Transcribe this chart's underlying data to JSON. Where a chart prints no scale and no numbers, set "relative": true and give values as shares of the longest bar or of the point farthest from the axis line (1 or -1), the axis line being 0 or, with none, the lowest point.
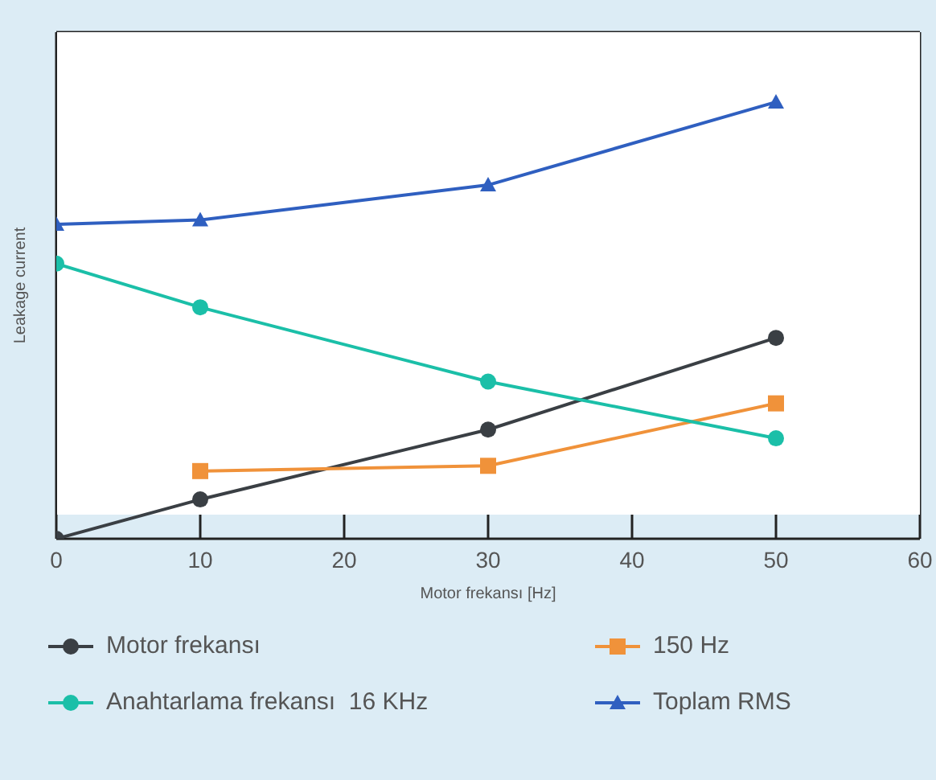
{
  "chart_data": {
    "type": "line",
    "relative": true,
    "xlabel": "Motor frekansı [Hz]",
    "ylabel": "Leakage current",
    "x": [
      0,
      10,
      30,
      50
    ],
    "xlim": [
      0,
      60
    ],
    "xticks": [
      0,
      10,
      20,
      30,
      40,
      50,
      60
    ],
    "grid": true,
    "legend": "bottom",
    "series": [
      {
        "name": "Motor frekansı",
        "color": "#3a3f44",
        "marker": "circle",
        "values": [
          0,
          0.09,
          0.25,
          0.46
        ]
      },
      {
        "name": "150 Hz",
        "color": "#f0923a",
        "marker": "square",
        "x": [
          10,
          30,
          50
        ],
        "values": [
          0.155,
          0.167,
          0.31
        ]
      },
      {
        "name": "Anahtarlama frekansı  16 KHz",
        "color": "#1bbfa8",
        "marker": "circle",
        "values": [
          0.63,
          0.53,
          0.36,
          0.23
        ]
      },
      {
        "name": "Toplam RMS",
        "color": "#2f5fc0",
        "marker": "triangle",
        "values": [
          0.72,
          0.73,
          0.81,
          1
        ]
      }
    ]
  }
}
